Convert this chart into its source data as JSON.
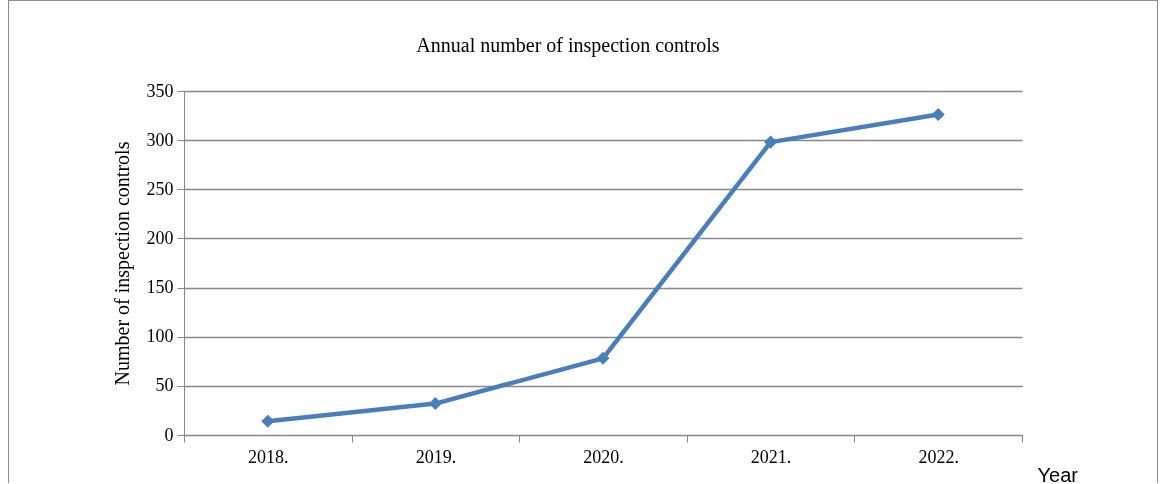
{
  "chart_data": {
    "type": "line",
    "title": "Annual number of inspection controls",
    "xlabel": "Year",
    "ylabel": "Number of inspection controls",
    "categories": [
      "2018.",
      "2019.",
      "2020.",
      "2021.",
      "2022."
    ],
    "series": [
      {
        "color": "#4a7ebb",
        "values": [
          14,
          32,
          78,
          298,
          326
        ]
      }
    ],
    "ylim": [
      0,
      350
    ],
    "yticks": [
      0,
      50,
      100,
      150,
      200,
      250,
      300,
      350
    ],
    "grid": "y",
    "legend": false,
    "marker": "diamond",
    "line_style": "solid"
  }
}
